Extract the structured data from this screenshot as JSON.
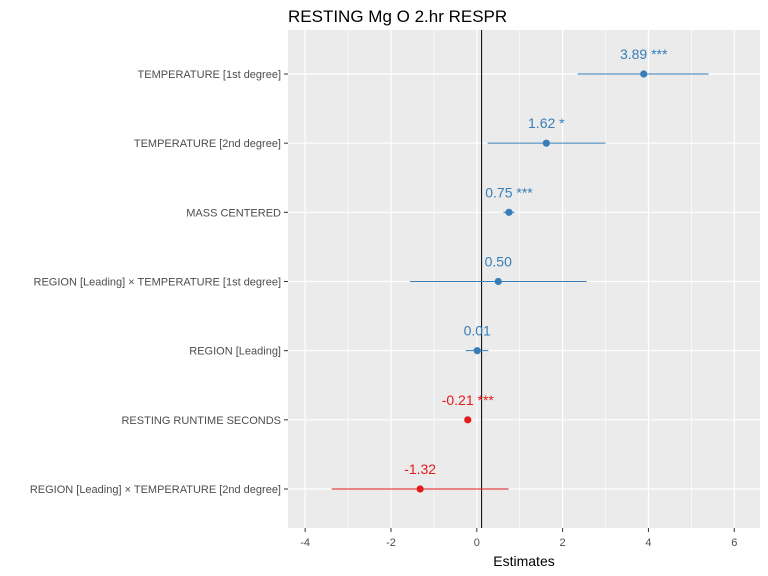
{
  "chart_data": {
    "type": "forest",
    "title": "RESTING Mg O 2.hr RESPR",
    "xlabel": "Estimates",
    "xlim": [
      -4.4,
      6.6
    ],
    "xticks": [
      -4,
      -2,
      0,
      2,
      4,
      6
    ],
    "xtick_labels": [
      "-4",
      "-2",
      "0",
      "2",
      "4",
      "6"
    ],
    "grid": true,
    "reference_line": 0,
    "colors": {
      "positive": "#377eb8",
      "negative": "#e41a1c",
      "panel": "#ebebeb",
      "gridline": "#ffffff"
    },
    "terms": [
      {
        "label": "TEMPERATURE [1st degree]",
        "estimate": 3.89,
        "ci": [
          2.35,
          5.4
        ],
        "data_label": "3.89 ***"
      },
      {
        "label": "TEMPERATURE [2nd degree]",
        "estimate": 1.62,
        "ci": [
          0.25,
          3.0
        ],
        "data_label": "1.62 *"
      },
      {
        "label": "MASS CENTERED",
        "estimate": 0.75,
        "ci": [
          0.62,
          0.88
        ],
        "data_label": "0.75 ***"
      },
      {
        "label": "REGION [Leading] × TEMPERATURE [1st degree]",
        "estimate": 0.5,
        "ci": [
          -1.56,
          2.56
        ],
        "data_label": "0.50"
      },
      {
        "label": "REGION [Leading]",
        "estimate": 0.01,
        "ci": [
          -0.26,
          0.27
        ],
        "data_label": "0.01"
      },
      {
        "label": "RESTING RUNTIME SECONDS",
        "estimate": -0.21,
        "ci": [
          -0.26,
          -0.16
        ],
        "data_label": "-0.21 ***"
      },
      {
        "label": "REGION [Leading] × TEMPERATURE [2nd degree]",
        "estimate": -1.32,
        "ci": [
          -3.38,
          0.74
        ],
        "data_label": "-1.32"
      }
    ]
  }
}
